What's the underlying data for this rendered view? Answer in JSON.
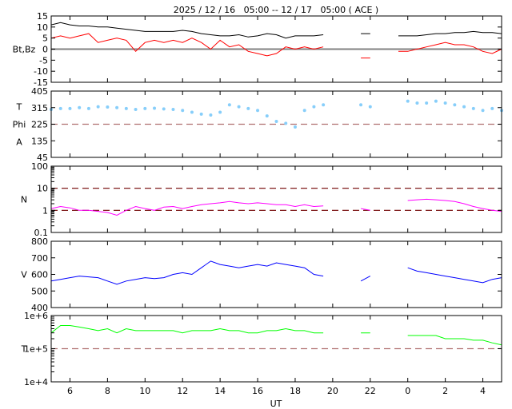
{
  "chart_data": {
    "type": "line",
    "title": "2025 / 12 / 16   05:00 -- 12 / 17   05:00 ( ACE )",
    "xlabel": "UT",
    "x_tick_labels": [
      "6",
      "8",
      "10",
      "12",
      "14",
      "16",
      "18",
      "20",
      "22",
      "0",
      "2",
      "4"
    ],
    "x_tick_hours": [
      6,
      8,
      10,
      12,
      14,
      16,
      18,
      20,
      22,
      24,
      26,
      28
    ],
    "x_range": [
      "12/16 05:00",
      "12/17 05:00"
    ],
    "times": [
      "05:00",
      "05:30",
      "06:00",
      "06:30",
      "07:00",
      "07:30",
      "08:00",
      "08:30",
      "09:00",
      "09:30",
      "10:00",
      "10:30",
      "11:00",
      "11:30",
      "12:00",
      "12:30",
      "13:00",
      "13:30",
      "14:00",
      "14:30",
      "15:00",
      "15:30",
      "16:00",
      "16:30",
      "17:00",
      "17:30",
      "18:00",
      "18:30",
      "19:00",
      "19:30",
      "20:00",
      "20:30",
      "21:00",
      "21:30",
      "22:00",
      "22:30",
      "23:00",
      "23:30",
      "00:00",
      "00:30",
      "01:00",
      "01:30",
      "02:00",
      "02:30",
      "03:00",
      "03:30",
      "04:00",
      "04:30",
      "05:00"
    ],
    "panels": [
      {
        "ylabel": "Bt,Bz",
        "scale": "linear",
        "ylim": [
          -15,
          15
        ],
        "ticks": [
          -15,
          -10,
          -5,
          0,
          5,
          10,
          15
        ],
        "tick_labels": [
          "-15",
          "-10",
          "-5",
          "0",
          "5",
          "10",
          "15"
        ],
        "ref_lines": [
          {
            "value": 0,
            "style": "solid",
            "color": "#808080"
          }
        ],
        "series": [
          {
            "color": "#000000",
            "values": [
              11,
              12,
              11,
              10.5,
              10.5,
              10,
              10,
              9.5,
              9,
              8.5,
              8,
              8,
              8,
              8,
              8.5,
              8,
              7,
              6.5,
              6,
              6,
              6.5,
              5.5,
              6,
              7,
              6.5,
              5,
              6,
              6,
              6,
              6.5,
              null,
              null,
              null,
              7,
              7,
              null,
              null,
              6,
              6,
              6,
              6.5,
              7,
              7,
              7.5,
              7.5,
              8,
              7.5,
              7.5,
              7
            ]
          },
          {
            "color": "#ff0000",
            "values": [
              5,
              6,
              5,
              6,
              7,
              3,
              4,
              5,
              4,
              -1,
              3,
              4,
              3,
              4,
              3,
              5,
              3,
              0,
              4,
              1,
              2,
              -1,
              -2,
              -3,
              -2,
              1,
              0,
              1,
              0,
              1,
              null,
              null,
              null,
              -4,
              -4,
              null,
              null,
              -1,
              -1,
              0,
              1,
              2,
              3,
              2,
              2,
              1,
              -1,
              -2,
              0
            ]
          }
        ]
      },
      {
        "ylabel": [
          "T",
          "Phi",
          "A"
        ],
        "scale": "linear",
        "ylim": [
          45,
          405
        ],
        "ticks": [
          45,
          135,
          225,
          315,
          405
        ],
        "tick_labels": [
          "45",
          "135",
          "225",
          "315",
          "405"
        ],
        "ref_lines": [
          {
            "value": 225,
            "style": "dashed",
            "color": "#b07070"
          }
        ],
        "series": [
          {
            "color": "#87cefa",
            "style": "dots",
            "values": [
              305,
              310,
              310,
              315,
              310,
              320,
              318,
              315,
              310,
              305,
              310,
              312,
              308,
              305,
              300,
              290,
              280,
              275,
              290,
              330,
              320,
              310,
              300,
              270,
              240,
              230,
              210,
              300,
              320,
              330,
              null,
              null,
              null,
              330,
              320,
              null,
              null,
              null,
              350,
              340,
              340,
              350,
              340,
              330,
              320,
              310,
              300,
              310,
              300
            ]
          }
        ]
      },
      {
        "ylabel": "N",
        "scale": "log",
        "ylim": [
          0.1,
          100
        ],
        "ticks": [
          0.1,
          1,
          10,
          100
        ],
        "tick_labels": [
          "0.1",
          "1",
          "10",
          "100"
        ],
        "ref_lines": [
          {
            "value": 1,
            "style": "dashed",
            "color": "#700000"
          },
          {
            "value": 10,
            "style": "dashed",
            "color": "#700000"
          }
        ],
        "series": [
          {
            "color": "#ff00ff",
            "values": [
              1.2,
              1.5,
              1.3,
              1.0,
              1.0,
              0.9,
              0.8,
              0.6,
              1.0,
              1.5,
              1.2,
              1.0,
              1.4,
              1.5,
              1.2,
              1.5,
              1.8,
              2.0,
              2.2,
              2.5,
              2.2,
              2.0,
              2.2,
              2.0,
              1.8,
              1.8,
              1.5,
              1.8,
              1.5,
              1.6,
              null,
              null,
              null,
              1.2,
              1.0,
              null,
              null,
              null,
              2.8,
              3,
              3.2,
              3.0,
              2.8,
              2.5,
              2.0,
              1.5,
              1.2,
              1.0,
              0.9
            ]
          }
        ]
      },
      {
        "ylabel": "V",
        "scale": "linear",
        "ylim": [
          400,
          800
        ],
        "ticks": [
          400,
          500,
          600,
          700,
          800
        ],
        "tick_labels": [
          "400",
          "500",
          "600",
          "700",
          "800"
        ],
        "ref_lines": [],
        "series": [
          {
            "color": "#0000ff",
            "values": [
              560,
              570,
              580,
              590,
              585,
              580,
              560,
              540,
              560,
              570,
              580,
              575,
              580,
              600,
              610,
              600,
              640,
              680,
              660,
              650,
              640,
              650,
              660,
              650,
              670,
              660,
              650,
              640,
              600,
              590,
              null,
              null,
              null,
              560,
              590,
              null,
              null,
              null,
              640,
              620,
              610,
              600,
              590,
              580,
              570,
              560,
              550,
              570,
              580
            ]
          }
        ]
      },
      {
        "ylabel": "T",
        "scale": "log",
        "ylim": [
          10000,
          1000000
        ],
        "ticks": [
          10000,
          100000,
          1000000
        ],
        "tick_labels": [
          "1e+4",
          "1e+5",
          "1e+6"
        ],
        "ref_lines": [
          {
            "value": 100000,
            "style": "dashed",
            "color": "#b07070"
          }
        ],
        "series": [
          {
            "color": "#00ff00",
            "values": [
              300000,
              500000,
              500000,
              450000,
              400000,
              350000,
              400000,
              300000,
              400000,
              350000,
              350000,
              350000,
              350000,
              350000,
              300000,
              350000,
              350000,
              350000,
              400000,
              350000,
              350000,
              300000,
              300000,
              350000,
              350000,
              400000,
              350000,
              350000,
              300000,
              300000,
              null,
              null,
              null,
              300000,
              300000,
              null,
              null,
              null,
              250000,
              250000,
              250000,
              250000,
              200000,
              200000,
              200000,
              180000,
              180000,
              150000,
              130000
            ]
          }
        ]
      }
    ]
  }
}
